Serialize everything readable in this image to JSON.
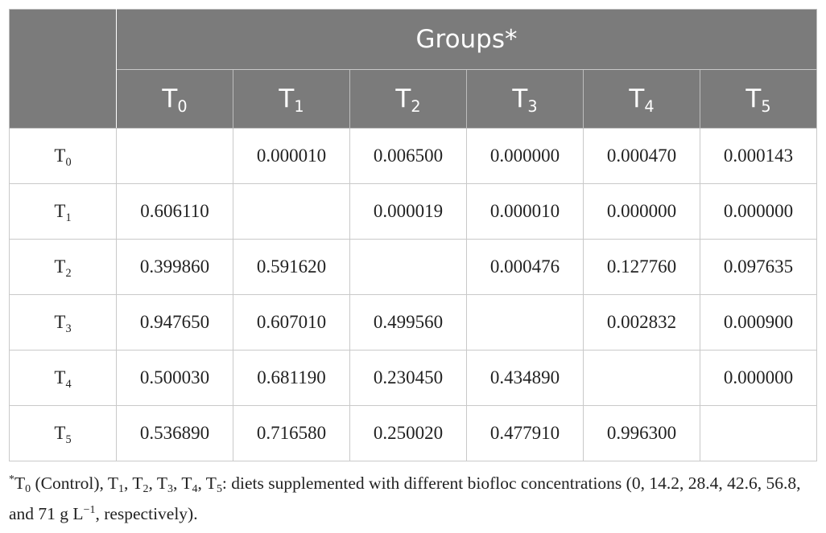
{
  "table": {
    "group_header": "Groups*",
    "columns": [
      {
        "base": "T",
        "sub": "0"
      },
      {
        "base": "T",
        "sub": "1"
      },
      {
        "base": "T",
        "sub": "2"
      },
      {
        "base": "T",
        "sub": "3"
      },
      {
        "base": "T",
        "sub": "4"
      },
      {
        "base": "T",
        "sub": "5"
      }
    ],
    "rows": [
      {
        "label": {
          "base": "T",
          "sub": "0"
        },
        "cells": [
          "",
          "0.000010",
          "0.006500",
          "0.000000",
          "0.000470",
          "0.000143"
        ]
      },
      {
        "label": {
          "base": "T",
          "sub": "1"
        },
        "cells": [
          "0.606110",
          "",
          "0.000019",
          "0.000010",
          "0.000000",
          "0.000000"
        ]
      },
      {
        "label": {
          "base": "T",
          "sub": "2"
        },
        "cells": [
          "0.399860",
          "0.591620",
          "",
          "0.000476",
          "0.127760",
          "0.097635"
        ]
      },
      {
        "label": {
          "base": "T",
          "sub": "3"
        },
        "cells": [
          "0.947650",
          "0.607010",
          "0.499560",
          "",
          "0.002832",
          "0.000900"
        ]
      },
      {
        "label": {
          "base": "T",
          "sub": "4"
        },
        "cells": [
          "0.500030",
          "0.681190",
          "0.230450",
          "0.434890",
          "",
          "0.000000"
        ]
      },
      {
        "label": {
          "base": "T",
          "sub": "5"
        },
        "cells": [
          "0.536890",
          "0.716580",
          "0.250020",
          "0.477910",
          "0.996300",
          ""
        ]
      }
    ]
  },
  "footnote": {
    "marker": "*",
    "text_before": "T",
    "parts": [
      {
        "sub": "0",
        "text": " (Control), T"
      },
      {
        "sub": "1",
        "text": ", T"
      },
      {
        "sub": "2",
        "text": ", T"
      },
      {
        "sub": "3",
        "text": ", T"
      },
      {
        "sub": "4",
        "text": ", T"
      },
      {
        "sub": "5",
        "text": ": diets supplemented with different biofloc concentrations (0, 14.2, 28.4, 42.6, 56.8, and 71 g L"
      }
    ],
    "unit_sup": "−1",
    "text_after": ", respectively)."
  }
}
